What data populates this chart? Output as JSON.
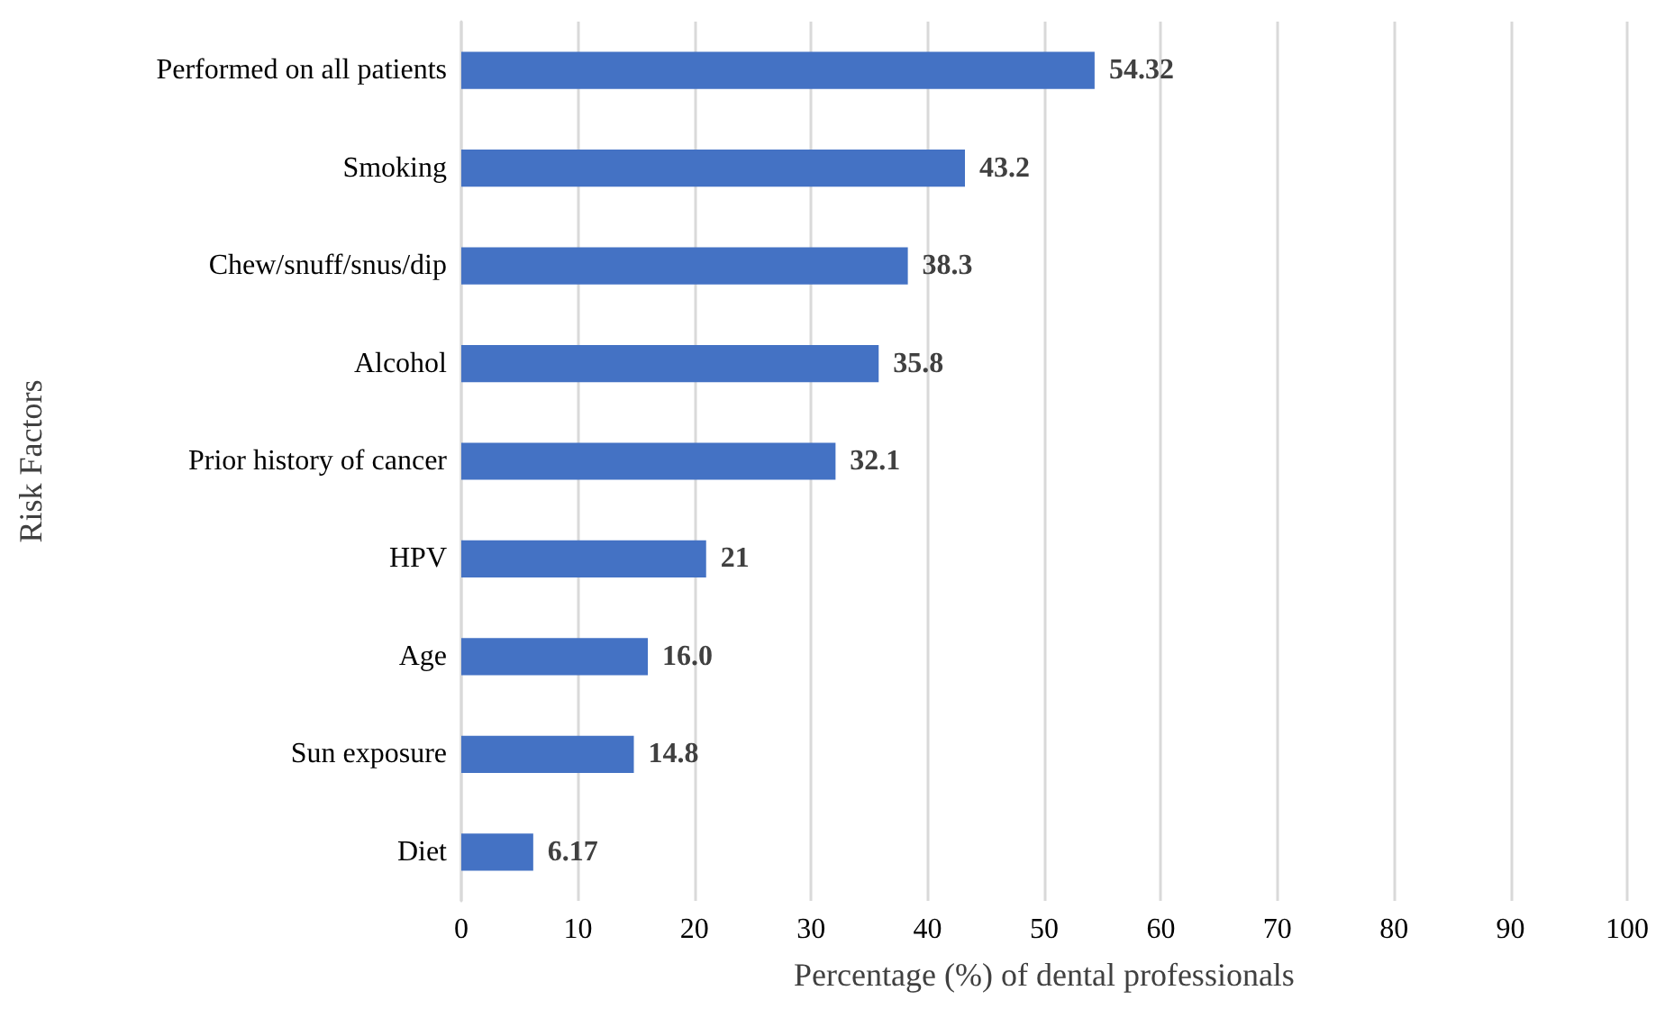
{
  "chart_data": {
    "type": "bar",
    "orientation": "horizontal",
    "xlabel": "Percentage (%) of dental professionals",
    "ylabel": "Risk Factors",
    "categories": [
      "Performed on all patients",
      "Smoking",
      "Chew/snuff/snus/dip",
      "Alcohol",
      "Prior history of cancer",
      "HPV",
      "Age",
      "Sun exposure",
      "Diet"
    ],
    "values": [
      54.32,
      43.2,
      38.3,
      35.8,
      32.1,
      21,
      16.0,
      14.8,
      6.17
    ],
    "value_labels": [
      "54.32",
      "43.2",
      "38.3",
      "35.8",
      "32.1",
      "21",
      "16.0",
      "14.8",
      "6.17"
    ],
    "color": "#4472c4",
    "xlim": [
      0,
      100
    ],
    "xticks": [
      0,
      10,
      20,
      30,
      40,
      50,
      60,
      70,
      80,
      90,
      100
    ],
    "grid": "x"
  }
}
